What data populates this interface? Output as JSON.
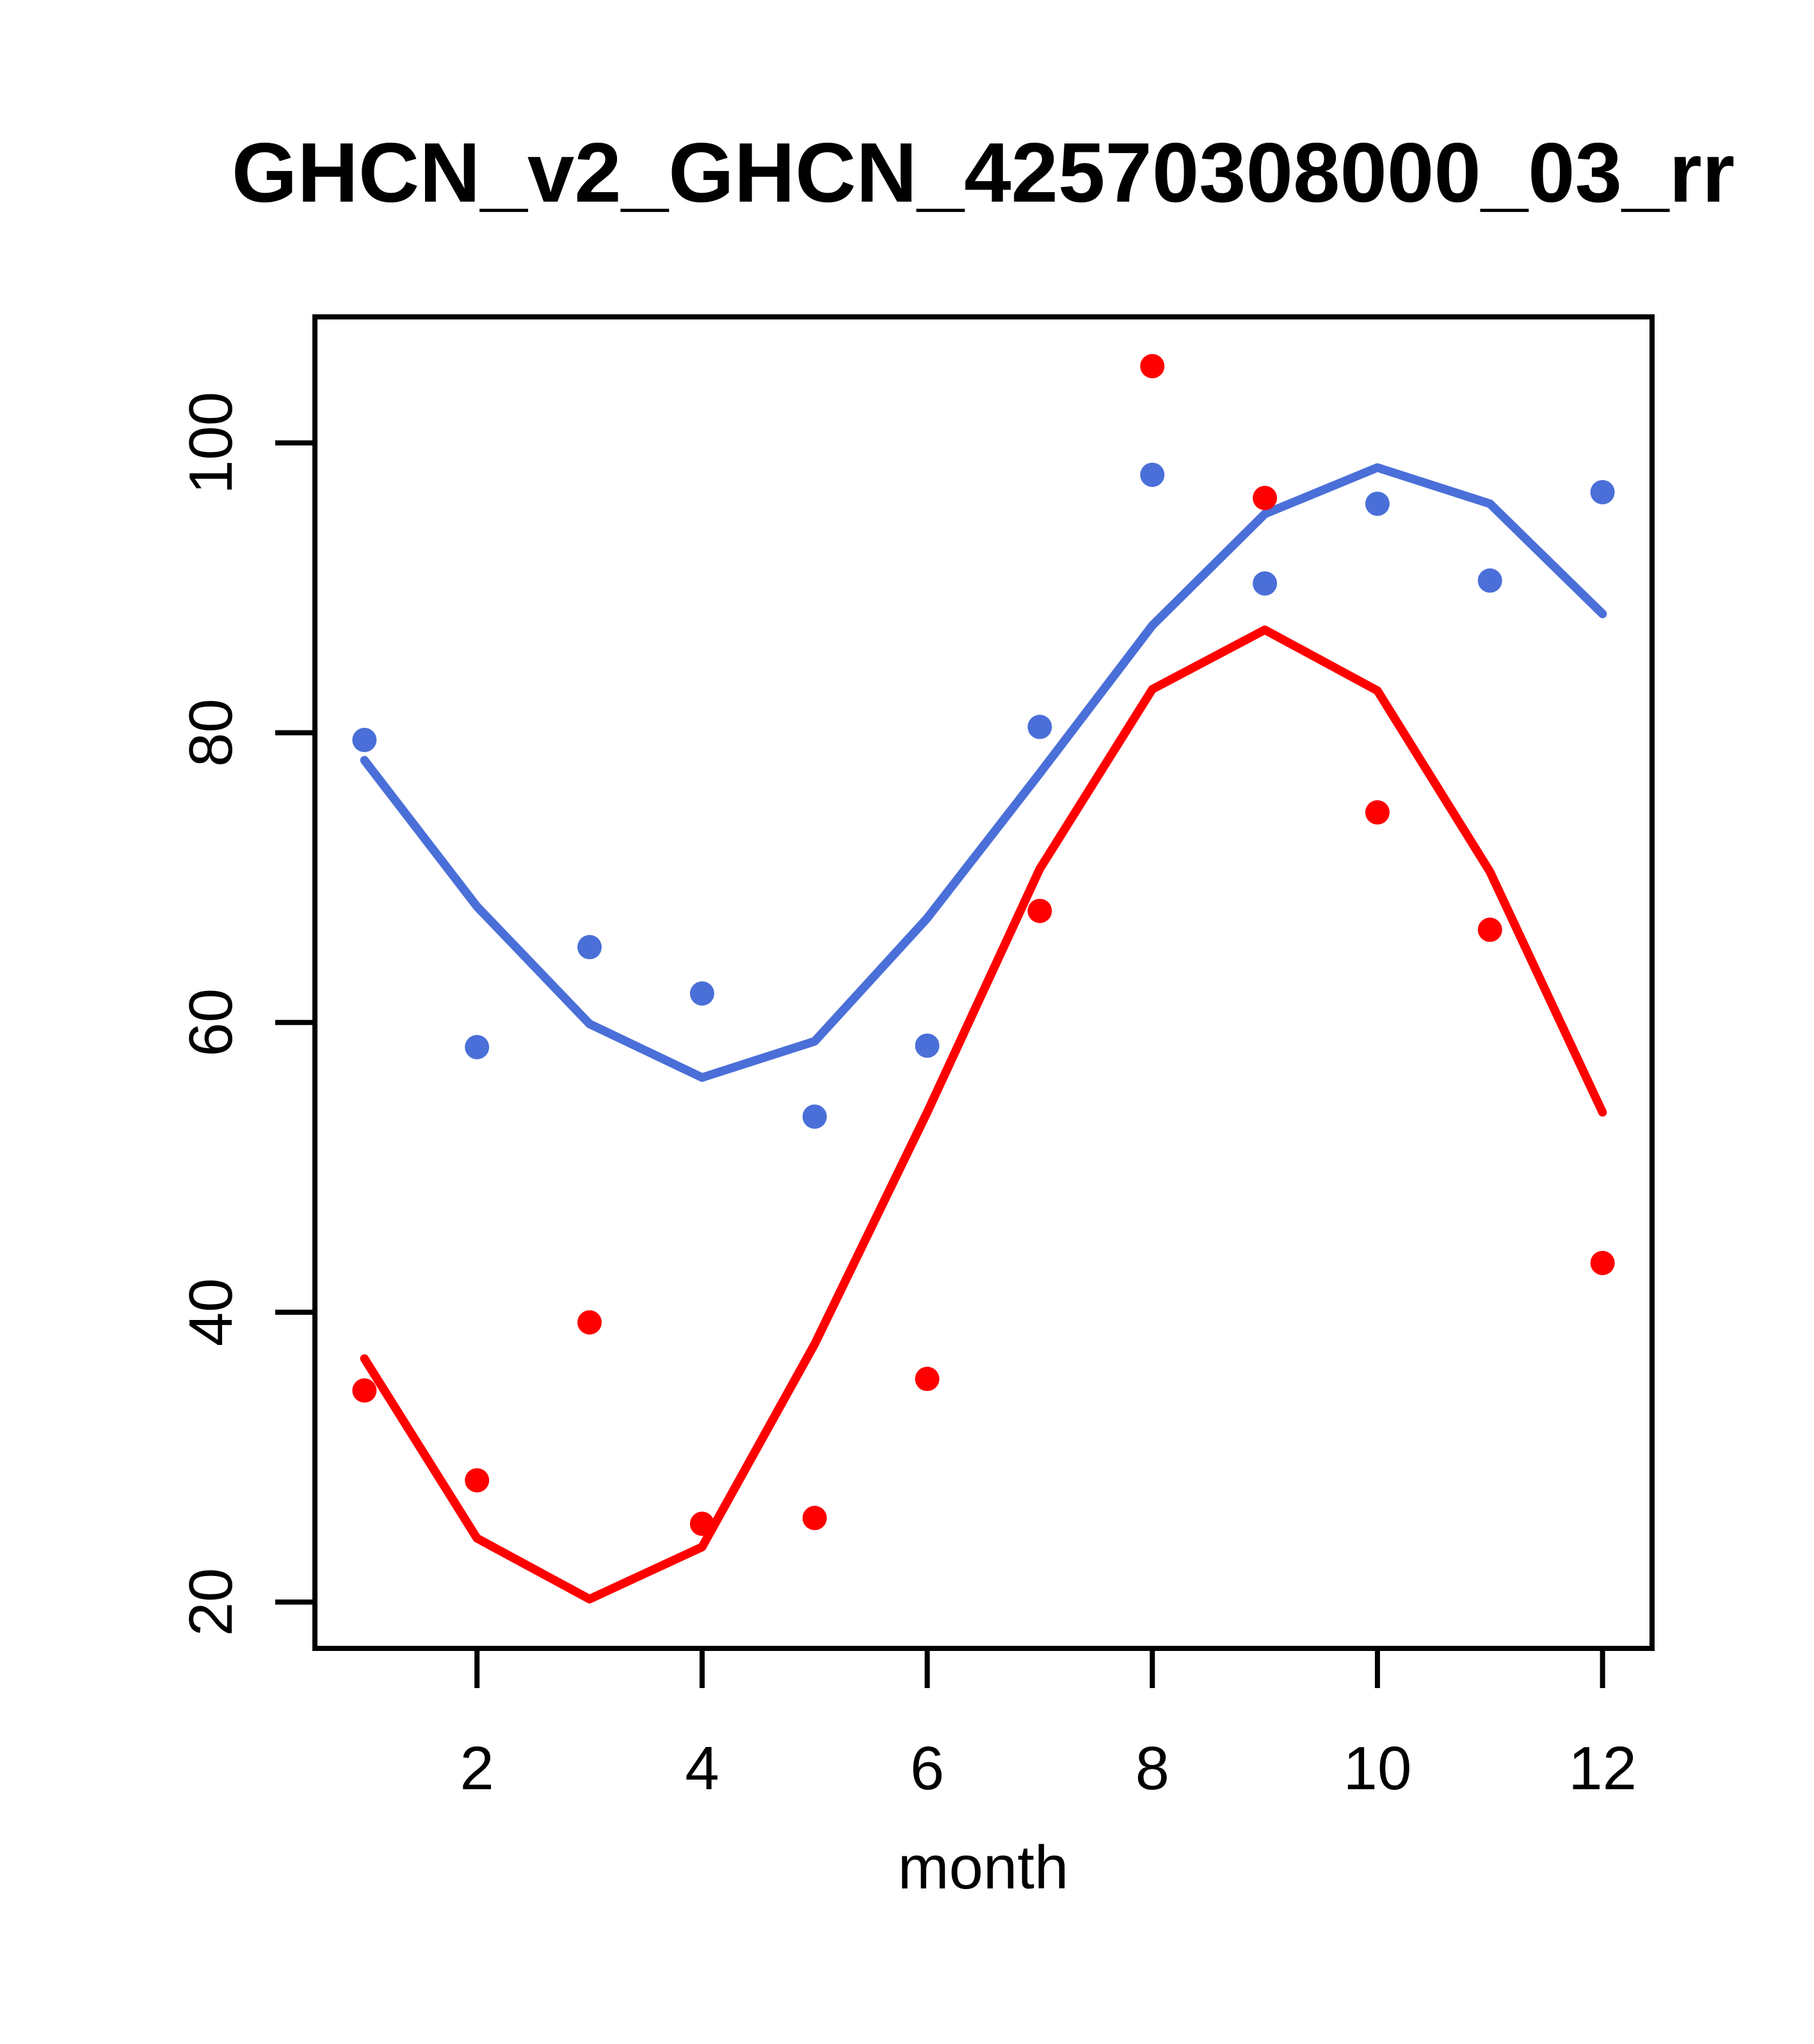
{
  "chart_data": {
    "type": "scatter",
    "title": "GHCN_v2_GHCN_42570308000_03_rr",
    "xlabel": "month",
    "ylabel": "",
    "x_ticks": [
      2,
      4,
      6,
      8,
      10,
      12
    ],
    "y_ticks": [
      20,
      40,
      60,
      80,
      100
    ],
    "xlim": [
      0.56,
      12.44
    ],
    "ylim": [
      16.8,
      108.7
    ],
    "grid": "off",
    "legend": "none",
    "x": [
      1,
      2,
      3,
      4,
      5,
      6,
      7,
      8,
      9,
      10,
      11,
      12
    ],
    "series": [
      {
        "name": "blue-series",
        "color": "#4A6FD8",
        "marker": "filled-circle",
        "points": [
          79.5,
          58.3,
          65.2,
          62.0,
          53.5,
          58.4,
          80.4,
          97.8,
          90.3,
          95.8,
          90.5,
          96.6
        ],
        "smooth_line": [
          78.1,
          68.0,
          59.9,
          56.2,
          58.7,
          67.2,
          77.2,
          87.4,
          95.1,
          98.3,
          95.8,
          88.2
        ]
      },
      {
        "name": "red-series",
        "color": "#FF0000",
        "marker": "filled-circle",
        "points": [
          34.6,
          28.4,
          39.3,
          25.4,
          25.8,
          35.4,
          67.7,
          105.3,
          96.2,
          74.5,
          66.4,
          43.4
        ],
        "smooth_line": [
          36.8,
          24.4,
          20.2,
          23.8,
          37.8,
          53.8,
          70.6,
          83.0,
          87.1,
          82.9,
          70.4,
          53.8
        ]
      }
    ]
  }
}
